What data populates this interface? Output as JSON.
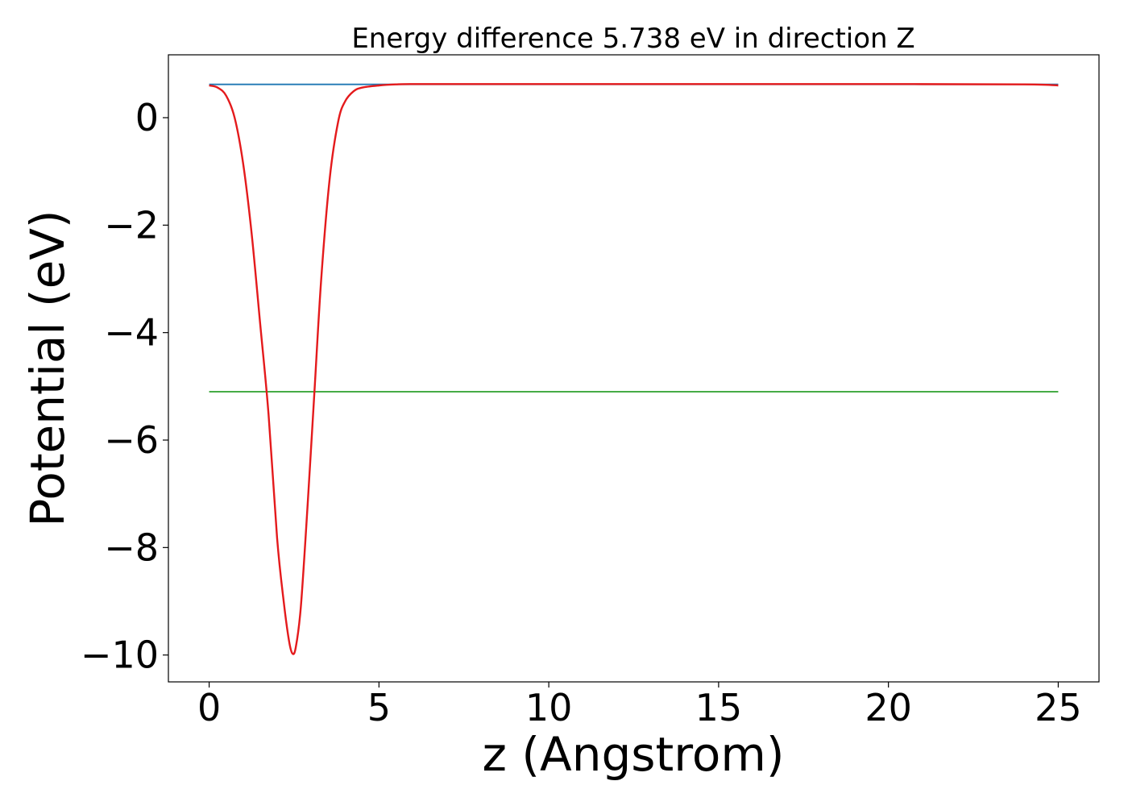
{
  "chart_data": {
    "type": "line",
    "title": "Energy difference 5.738 eV in direction Z",
    "xlabel": "z (Angstrom)",
    "ylabel": "Potential (eV)",
    "xlim": [
      -1.2,
      26.2
    ],
    "ylim": [
      -10.5,
      1.17
    ],
    "xticks": [
      0,
      5,
      10,
      15,
      20,
      25
    ],
    "xtick_labels": [
      "0",
      "5",
      "10",
      "15",
      "20",
      "25"
    ],
    "yticks": [
      0,
      -2,
      -4,
      -6,
      -8,
      -10
    ],
    "ytick_labels": [
      "0",
      "−2",
      "−4",
      "−6",
      "−8",
      "−10"
    ],
    "grid": false,
    "series": [
      {
        "color": "#1f77b4",
        "x": [
          0,
          25
        ],
        "y": [
          0.62,
          0.62
        ]
      },
      {
        "color": "#2ca02c",
        "x": [
          0,
          25
        ],
        "y": [
          -5.1,
          -5.1
        ]
      },
      {
        "color": "#e41a1c",
        "x": [
          0,
          0.25,
          0.5,
          0.75,
          1.0,
          1.25,
          1.5,
          1.75,
          2.0,
          2.2,
          2.35,
          2.45,
          2.55,
          2.7,
          2.9,
          3.1,
          3.3,
          3.55,
          3.8,
          4.0,
          4.25,
          4.5,
          5.0,
          5.5,
          6.0,
          8.0,
          10.0,
          15.0,
          20.0,
          24.0,
          25.0
        ],
        "y": [
          0.6,
          0.56,
          0.41,
          0.0,
          -0.85,
          -2.15,
          -3.82,
          -5.53,
          -7.82,
          -9.03,
          -9.73,
          -9.97,
          -9.86,
          -9.1,
          -7.2,
          -5.1,
          -3.0,
          -1.13,
          -0.07,
          0.3,
          0.49,
          0.56,
          0.6,
          0.62,
          0.625,
          0.625,
          0.625,
          0.625,
          0.625,
          0.62,
          0.6
        ]
      }
    ]
  }
}
